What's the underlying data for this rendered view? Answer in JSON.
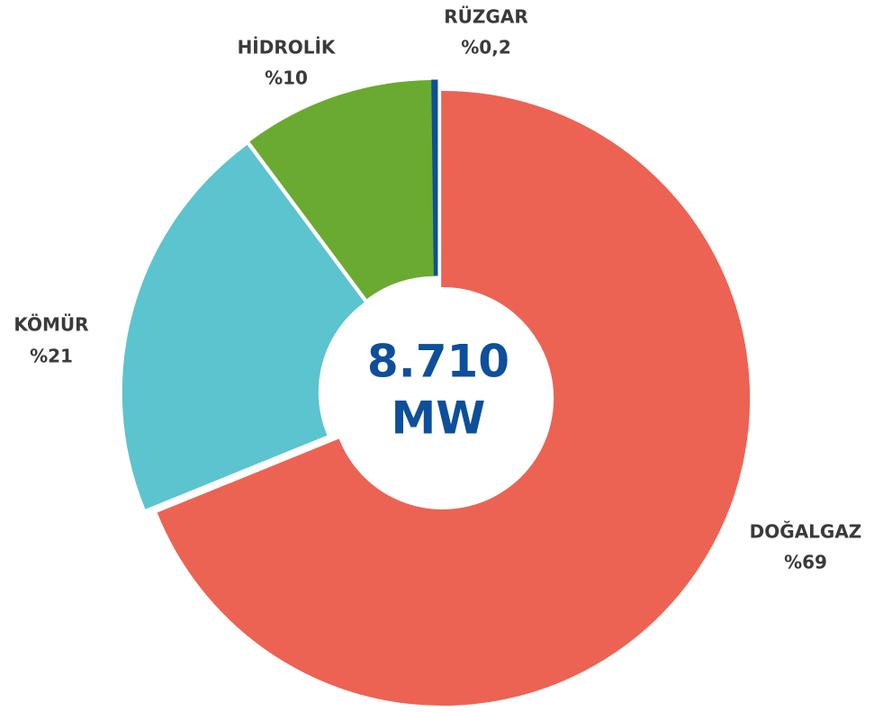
{
  "chart_data": {
    "type": "donut",
    "categories": [
      "DOĞALGAZ",
      "KÖMÜR",
      "HİDROLİK",
      "RÜZGAR"
    ],
    "values": [
      69,
      21,
      10,
      0.2
    ],
    "value_labels": [
      "%69",
      "%21",
      "%10",
      "%0,2"
    ],
    "colors": [
      "#ec6353",
      "#5bc4cf",
      "#6aaa30",
      "#0d4f9a"
    ],
    "center_label": [
      "8.710",
      "MW"
    ]
  }
}
